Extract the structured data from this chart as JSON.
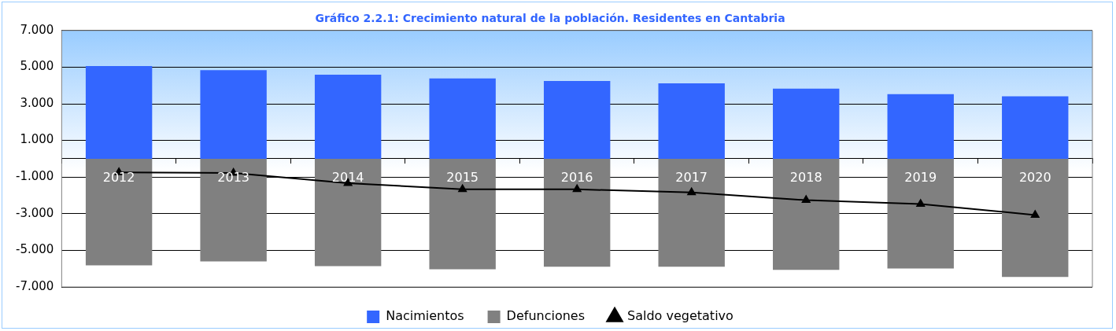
{
  "chart_data": {
    "type": "bar",
    "title": "Gráfico 2.2.1: Crecimiento natural de la población. Residentes en Cantabria",
    "categories": [
      "2012",
      "2013",
      "2014",
      "2015",
      "2016",
      "2017",
      "2018",
      "2019",
      "2020"
    ],
    "stacked": true,
    "series": [
      {
        "name": "Nacimientos",
        "color": "#3366ff",
        "values": [
          5060,
          4840,
          4590,
          4380,
          4250,
          4120,
          3830,
          3530,
          3410
        ]
      },
      {
        "name": "Defunciones",
        "color": "#808080",
        "values": [
          -5820,
          -5610,
          -5860,
          -6030,
          -5900,
          -5900,
          -6070,
          -5990,
          -6450
        ]
      },
      {
        "name": "Saldo vegetativo",
        "type": "line",
        "color": "#000000",
        "marker": "triangle",
        "values": [
          -740,
          -780,
          -1330,
          -1670,
          -1670,
          -1840,
          -2260,
          -2470,
          -3070
        ]
      }
    ],
    "ylim": [
      -7000,
      7000
    ],
    "yticks": [
      {
        "value": 7000,
        "label": "7.000"
      },
      {
        "value": 5000,
        "label": "5.000"
      },
      {
        "value": 3000,
        "label": "3.000"
      },
      {
        "value": 1000,
        "label": "1.000"
      },
      {
        "value": -1000,
        "label": "-1.000"
      },
      {
        "value": -3000,
        "label": "-3.000"
      },
      {
        "value": -5000,
        "label": "-5.000"
      },
      {
        "value": -7000,
        "label": "-7.000"
      }
    ],
    "grid": "y",
    "legend": "bottom"
  }
}
